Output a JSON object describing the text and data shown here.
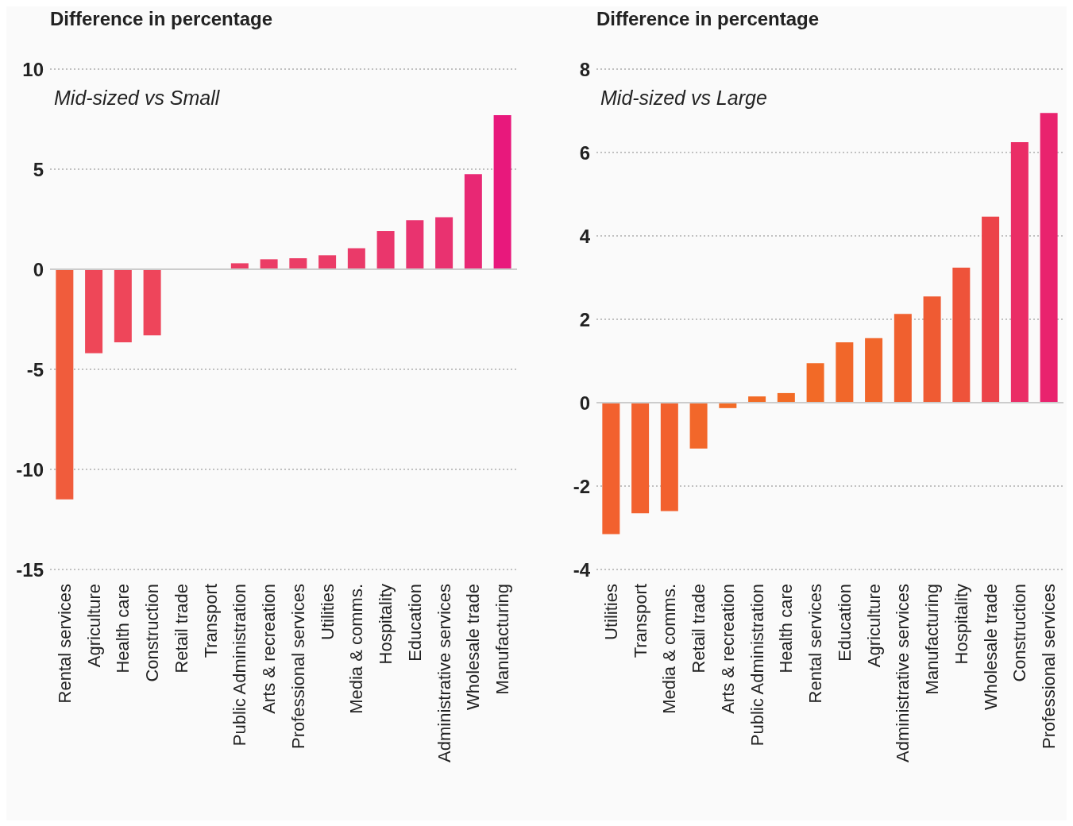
{
  "chart_data": [
    {
      "type": "bar",
      "title": "Difference in percentage",
      "subtitle": "Mid-sized vs Small",
      "categories": [
        "Rental services",
        "Agriculture",
        "Health care",
        "Construction",
        "Retail trade",
        "Transport",
        "Public Administration",
        "Arts & recreation",
        "Professional services",
        "Utilities",
        "Media & comms.",
        "Hospitality",
        "Education",
        "Administrative services",
        "Wholesale trade",
        "Manufacturing"
      ],
      "values": [
        -11.5,
        -4.2,
        -3.65,
        -3.3,
        0,
        0,
        0.3,
        0.5,
        0.55,
        0.7,
        1.05,
        1.9,
        2.45,
        2.6,
        4.75,
        7.7
      ],
      "colors": [
        "#f05c3c",
        "#ee4758",
        "#ee465a",
        "#ee455b",
        "#ec3f63",
        "#ec3f63",
        "#eb3e65",
        "#eb3d66",
        "#eb3d66",
        "#eb3c67",
        "#ea3a69",
        "#ea366c",
        "#e9336f",
        "#e93270",
        "#e82874",
        "#e8187c"
      ],
      "ylim": [
        -15,
        10
      ],
      "yticks": [
        -15,
        -10,
        -5,
        0,
        5,
        10
      ],
      "grid": "y",
      "ref_lines": [
        {
          "axis": "y",
          "value": 0,
          "color": "#cccccc"
        }
      ]
    },
    {
      "type": "bar",
      "title": "Difference in percentage",
      "subtitle": "Mid-sized vs Large",
      "categories": [
        "Utilities",
        "Transport",
        "Media & comms.",
        "Retail trade",
        "Arts & recreation",
        "Public Administration",
        "Health care",
        "Rental services",
        "Education",
        "Agriculture",
        "Administrative services",
        "Manufacturing",
        "Hospitality",
        "Wholesale trade",
        "Construction",
        "Professional services"
      ],
      "values": [
        -3.15,
        -2.65,
        -2.6,
        -1.1,
        -0.13,
        0.15,
        0.23,
        0.95,
        1.45,
        1.55,
        2.13,
        2.55,
        3.24,
        4.46,
        6.25,
        6.95
      ],
      "colors": [
        "#f2612e",
        "#f2612e",
        "#f2612e",
        "#f2672a",
        "#f26b27",
        "#f26b26",
        "#f26b26",
        "#f26a27",
        "#f1672a",
        "#f1662b",
        "#f0602f",
        "#ef5b33",
        "#ee533a",
        "#ec4349",
        "#ea2d66",
        "#e9236e"
      ],
      "ylim": [
        -4,
        8
      ],
      "yticks": [
        -4,
        -2,
        0,
        2,
        4,
        6,
        8
      ],
      "grid": "y",
      "ref_lines": [
        {
          "axis": "y",
          "value": 0,
          "color": "#cccccc"
        }
      ]
    }
  ]
}
